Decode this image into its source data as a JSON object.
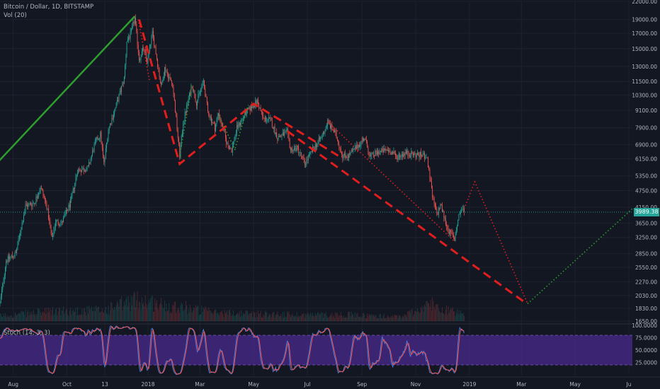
{
  "header": {
    "symbol_line": "Bitcoin / Dollar, 1D, BITSTAMP",
    "volume_line": "Vol (20)"
  },
  "stoch": {
    "label": "Stoch (14, 3, 3)",
    "upper_band": 80,
    "lower_band": 20,
    "k_color": "#4a7bd8",
    "d_color": "#ef5350",
    "band_fill": "#4a2a8c"
  },
  "last_price": {
    "label": "3989.38",
    "value": 3989.38,
    "color": "#26a69a"
  },
  "colors": {
    "background": "#131722",
    "up": "#26a69a",
    "down": "#ef5350",
    "trend_up": "#2e9e2e",
    "trend_down": "#e01e1e",
    "projection_up": "#2e9e2e",
    "axis_text": "#b2b5be",
    "grid": "#1e2230"
  },
  "chart_data": {
    "type": "candlestick",
    "symbol": "Bitcoin / Dollar",
    "interval": "1D",
    "exchange": "BITSTAMP",
    "y_scale": "log",
    "ylim": [
      1650,
      22000
    ],
    "y_ticks": [
      22000,
      19000,
      17000,
      15000,
      13000,
      11500,
      10300,
      9100,
      7900,
      6900,
      6150,
      5350,
      4750,
      4150,
      3650,
      3250,
      2850,
      2550,
      2270,
      2030,
      1830,
      1650
    ],
    "y_tick_labels": [
      "22000.00",
      "19000.00",
      "17000.00",
      "15000.00",
      "13000.00",
      "11500.00",
      "10300.00",
      "9100.00",
      "7900.00",
      "6900.00",
      "6150.00",
      "5350.00",
      "4750.00",
      "4150.00",
      "3650.00",
      "3250.00",
      "2850.00",
      "2550.00",
      "2270.00",
      "2030.00",
      "1830.00",
      "1650.00"
    ],
    "xlim": [
      "2017-07-17",
      "2019-07-05"
    ],
    "x_ticks": [
      {
        "label": "Aug",
        "date": "2017-08-01"
      },
      {
        "label": "Oct",
        "date": "2017-10-01"
      },
      {
        "label": "13",
        "date": "2017-11-13"
      },
      {
        "label": "2018",
        "date": "2018-01-01"
      },
      {
        "label": "Mar",
        "date": "2018-03-01"
      },
      {
        "label": "May",
        "date": "2018-05-01"
      },
      {
        "label": "Jul",
        "date": "2018-07-01"
      },
      {
        "label": "Sep",
        "date": "2018-09-01"
      },
      {
        "label": "Nov",
        "date": "2018-11-01"
      },
      {
        "label": "2019",
        "date": "2019-01-01"
      },
      {
        "label": "Mar",
        "date": "2019-03-01"
      },
      {
        "label": "May",
        "date": "2019-05-01"
      },
      {
        "label": "Ju",
        "date": "2019-07-01"
      }
    ],
    "price_path": [
      [
        "2017-07-17",
        1900
      ],
      [
        "2017-07-24",
        2700
      ],
      [
        "2017-08-04",
        2850
      ],
      [
        "2017-08-15",
        4200
      ],
      [
        "2017-08-25",
        4300
      ],
      [
        "2017-09-01",
        4900
      ],
      [
        "2017-09-08",
        4200
      ],
      [
        "2017-09-14",
        3200
      ],
      [
        "2017-09-18",
        3700
      ],
      [
        "2017-09-25",
        3650
      ],
      [
        "2017-10-05",
        4300
      ],
      [
        "2017-10-13",
        5600
      ],
      [
        "2017-10-25",
        5700
      ],
      [
        "2017-11-02",
        7000
      ],
      [
        "2017-11-08",
        7500
      ],
      [
        "2017-11-12",
        5900
      ],
      [
        "2017-11-17",
        7800
      ],
      [
        "2017-11-26",
        9500
      ],
      [
        "2017-12-05",
        11800
      ],
      [
        "2017-12-08",
        16000
      ],
      [
        "2017-12-12",
        16800
      ],
      [
        "2017-12-17",
        19200
      ],
      [
        "2017-12-22",
        13800
      ],
      [
        "2017-12-27",
        15000
      ],
      [
        "2017-12-31",
        13500
      ],
      [
        "2018-01-06",
        17000
      ],
      [
        "2018-01-10",
        14500
      ],
      [
        "2018-01-16",
        11000
      ],
      [
        "2018-01-20",
        12800
      ],
      [
        "2018-01-29",
        11200
      ],
      [
        "2018-02-01",
        9100
      ],
      [
        "2018-02-06",
        6300
      ],
      [
        "2018-02-10",
        8300
      ],
      [
        "2018-02-20",
        11200
      ],
      [
        "2018-02-25",
        9700
      ],
      [
        "2018-03-05",
        11500
      ],
      [
        "2018-03-10",
        9000
      ],
      [
        "2018-03-18",
        7900
      ],
      [
        "2018-03-22",
        8900
      ],
      [
        "2018-04-01",
        6900
      ],
      [
        "2018-04-06",
        6600
      ],
      [
        "2018-04-12",
        7900
      ],
      [
        "2018-04-22",
        8900
      ],
      [
        "2018-05-05",
        9800
      ],
      [
        "2018-05-12",
        8500
      ],
      [
        "2018-05-20",
        8400
      ],
      [
        "2018-05-28",
        7300
      ],
      [
        "2018-06-08",
        7600
      ],
      [
        "2018-06-12",
        6600
      ],
      [
        "2018-06-20",
        6700
      ],
      [
        "2018-06-28",
        5900
      ],
      [
        "2018-07-08",
        6700
      ],
      [
        "2018-07-18",
        7400
      ],
      [
        "2018-07-24",
        8300
      ],
      [
        "2018-08-02",
        7500
      ],
      [
        "2018-08-10",
        6300
      ],
      [
        "2018-08-16",
        6300
      ],
      [
        "2018-08-25",
        6700
      ],
      [
        "2018-09-04",
        7300
      ],
      [
        "2018-09-10",
        6250
      ],
      [
        "2018-09-20",
        6500
      ],
      [
        "2018-10-01",
        6600
      ],
      [
        "2018-10-11",
        6250
      ],
      [
        "2018-10-20",
        6450
      ],
      [
        "2018-11-01",
        6350
      ],
      [
        "2018-11-13",
        6300
      ],
      [
        "2018-11-16",
        5600
      ],
      [
        "2018-11-20",
        4500
      ],
      [
        "2018-11-25",
        3900
      ],
      [
        "2018-11-29",
        4250
      ],
      [
        "2018-12-07",
        3500
      ],
      [
        "2018-12-15",
        3200
      ],
      [
        "2018-12-20",
        3900
      ],
      [
        "2018-12-24",
        4100
      ],
      [
        "2018-12-26",
        3989
      ]
    ],
    "volume": {
      "label": "Vol (20)",
      "profile": [
        [
          "2017-07-17",
          0.25
        ],
        [
          "2017-09-14",
          0.45
        ],
        [
          "2017-11-12",
          0.5
        ],
        [
          "2017-12-08",
          0.85
        ],
        [
          "2017-12-22",
          1.0
        ],
        [
          "2018-01-16",
          0.75
        ],
        [
          "2018-02-06",
          0.7
        ],
        [
          "2018-03-15",
          0.4
        ],
        [
          "2018-05-01",
          0.35
        ],
        [
          "2018-06-28",
          0.3
        ],
        [
          "2018-08-15",
          0.3
        ],
        [
          "2018-10-15",
          0.2
        ],
        [
          "2018-11-20",
          0.8
        ],
        [
          "2018-12-15",
          0.4
        ],
        [
          "2018-12-26",
          0.3
        ]
      ]
    },
    "annotations": [
      {
        "type": "trend_line",
        "style": "solid",
        "color": "#2e9e2e",
        "points": [
          [
            "2017-07-15",
            6000
          ],
          [
            "2017-12-17",
            19500
          ]
        ]
      },
      {
        "type": "trend_line",
        "style": "dashed",
        "color": "#e01e1e",
        "points": [
          [
            "2017-12-22",
            19000
          ],
          [
            "2018-02-06",
            5900
          ],
          [
            "2018-05-01",
            9600
          ],
          [
            "2018-08-05",
            6300
          ]
        ]
      },
      {
        "type": "trend_line",
        "style": "dashed",
        "color": "#e01e1e",
        "points": [
          [
            "2018-06-08",
            7700
          ],
          [
            "2019-03-07",
            1900
          ]
        ]
      },
      {
        "type": "trend_line",
        "style": "dotted",
        "color": "#e01e1e",
        "points": [
          [
            "2018-07-24",
            8300
          ],
          [
            "2018-12-15",
            3150
          ]
        ]
      },
      {
        "type": "trend_line",
        "style": "dotted",
        "color": "#e01e1e",
        "points": [
          [
            "2018-12-26",
            4100
          ],
          [
            "2019-01-07",
            5100
          ],
          [
            "2019-03-08",
            1900
          ]
        ]
      },
      {
        "type": "trend_line",
        "style": "dotted",
        "color": "#2e9e2e",
        "points": [
          [
            "2019-03-08",
            1900
          ],
          [
            "2019-07-05",
            4100
          ]
        ]
      },
      {
        "type": "trend_line",
        "style": "dotted",
        "color": "#e01e1e",
        "points": [
          [
            "2017-12-21",
            19000
          ],
          [
            "2018-01-03",
            11500
          ]
        ]
      },
      {
        "type": "trend_line",
        "style": "dotted",
        "color": "#2e9e2e",
        "points": [
          [
            "2018-02-06",
            6300
          ],
          [
            "2018-02-20",
            11200
          ]
        ]
      },
      {
        "type": "trend_line",
        "style": "dotted",
        "color": "#2e9e2e",
        "points": [
          [
            "2018-03-22",
            8800
          ],
          [
            "2018-04-10",
            6600
          ]
        ]
      },
      {
        "type": "trend_line",
        "style": "dotted",
        "color": "#2e9e2e",
        "points": [
          [
            "2018-04-10",
            6700
          ],
          [
            "2018-04-25",
            9500
          ]
        ]
      }
    ],
    "stoch_oscillator": {
      "params": "14, 3, 3",
      "ylim": [
        0,
        100
      ],
      "tick_labels": [
        "100.0000",
        "75.0000",
        "50.0000",
        "25.0000"
      ],
      "ticks": [
        100,
        75,
        50,
        25
      ],
      "bands": [
        20,
        80
      ]
    }
  }
}
